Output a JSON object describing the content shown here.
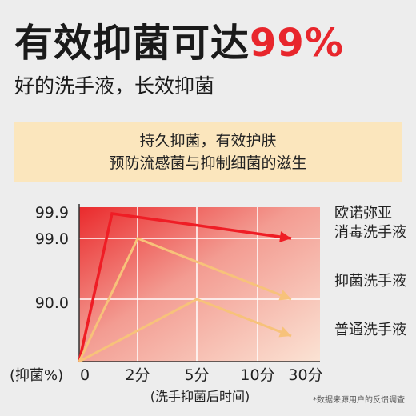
{
  "headline": {
    "main": "有效抑菌可达",
    "accent": "99%"
  },
  "subline": "好的洗手液，长效抑菌",
  "banner": {
    "line1": "持久抑菌，有效护肤",
    "line2": "预防流感菌与抑制细菌的滋生"
  },
  "footnote": "*数据来源用户的反馈调查",
  "colors": {
    "accent": "#e8262c",
    "series_main": "#ef1d25",
    "series_other": "#f7c27a",
    "banner_bg": "#fbe6bd"
  },
  "chart_data": {
    "type": "line",
    "ylabel": "(抑菌%)",
    "xlabel": "(洗手抑菌后时间)",
    "x_ticks": [
      "0",
      "2分",
      "5分",
      "10分",
      "30分"
    ],
    "y_ticks": [
      "90.0",
      "99.0",
      "99.9"
    ],
    "y_scale": "non-linear (labeled ticks only)",
    "grid": true,
    "series": [
      {
        "name": "欧诺弥亚\n消毒洗手液",
        "label_lines": [
          "欧诺弥亚",
          "消毒洗手液"
        ],
        "color": "#ef1d25",
        "points": [
          [
            "0",
            0
          ],
          [
            "1分",
            99.9
          ],
          [
            "30分",
            99.0
          ]
        ]
      },
      {
        "name": "抑菌洗手液",
        "label_lines": [
          "抑菌洗手液"
        ],
        "color": "#f7c27a",
        "points": [
          [
            "0",
            0
          ],
          [
            "2分",
            99.0
          ],
          [
            "30分",
            90.0
          ]
        ]
      },
      {
        "name": "普通洗手液",
        "label_lines": [
          "普通洗手液"
        ],
        "color": "#f7c27a",
        "points": [
          [
            "0",
            0
          ],
          [
            "5分",
            90.0
          ],
          [
            "30分",
            85
          ]
        ]
      }
    ]
  }
}
